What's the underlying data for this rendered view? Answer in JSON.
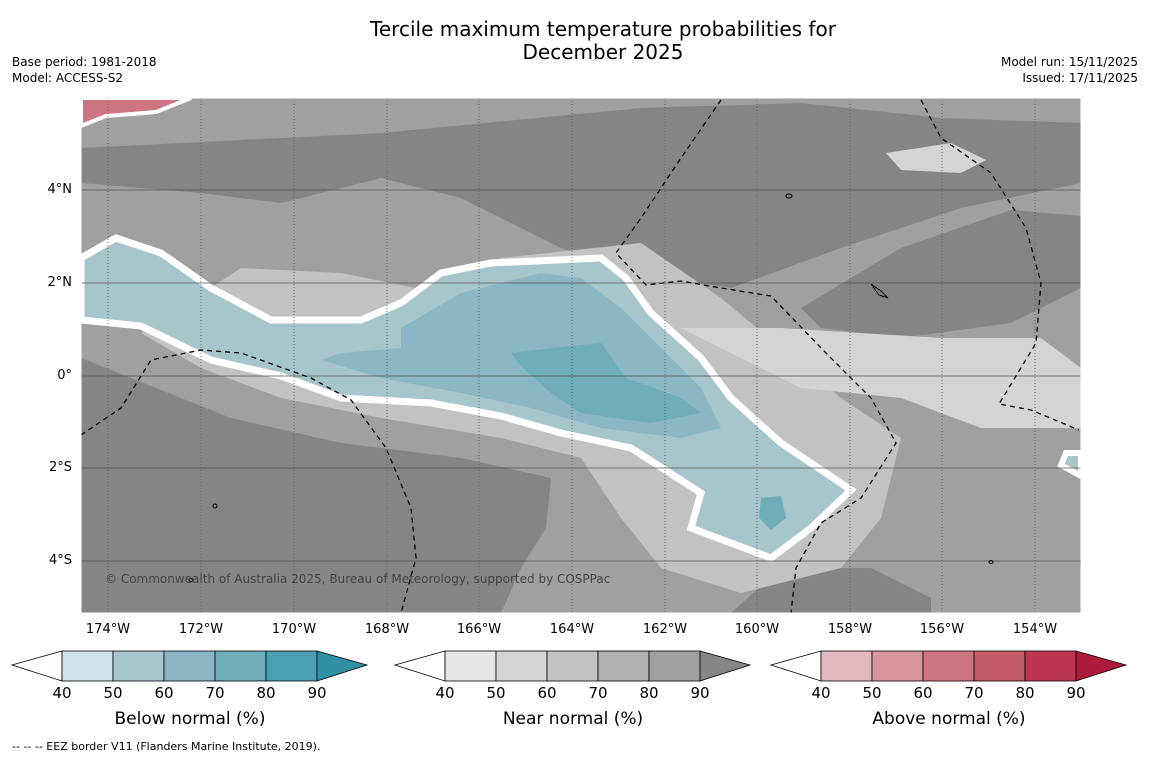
{
  "title": {
    "line1": "Tercile maximum temperature probabilities for",
    "line2": "December 2025"
  },
  "meta_left": {
    "base_period": "Base period: 1981-2018",
    "model": "Model: ACCESS-S2"
  },
  "meta_right": {
    "model_run": "Model run: 15/11/2025",
    "issued": "Issued: 17/11/2025"
  },
  "map": {
    "lat_labels": [
      "4°N",
      "2°N",
      "0°",
      "2°S",
      "4°S"
    ],
    "lon_labels": [
      "174°W",
      "172°W",
      "170°W",
      "168°W",
      "166°W",
      "164°W",
      "162°W",
      "160°W",
      "158°W",
      "156°W",
      "154°W"
    ],
    "copyright": "© Commonwealth of Australia 2025, Bureau of Meteorology, supported by COSPPac"
  },
  "colorbars": [
    {
      "label": "Below normal (%)",
      "ticks": [
        "40",
        "50",
        "60",
        "70",
        "80",
        "90"
      ],
      "colors": [
        "#cce3ea",
        "#a6c6cc",
        "#8bb6c4",
        "#6fadb8",
        "#4aa0b0",
        "#2f8fa3"
      ]
    },
    {
      "label": "Near normal (%)",
      "ticks": [
        "40",
        "50",
        "60",
        "70",
        "80",
        "90"
      ],
      "colors": [
        "#e6e6e6",
        "#d4d4d4",
        "#c2c2c2",
        "#b0b0b0",
        "#a0a0a0",
        "#858585"
      ]
    },
    {
      "label": "Above normal (%)",
      "ticks": [
        "40",
        "50",
        "60",
        "70",
        "80",
        "90"
      ],
      "colors": [
        "#e3b9bf",
        "#d8959e",
        "#cd7580",
        "#c45b69",
        "#ba3550",
        "#ab1a38"
      ]
    }
  ],
  "footnote": "-- -- -- EEZ border V11 (Flanders Marine Institute, 2019)."
}
